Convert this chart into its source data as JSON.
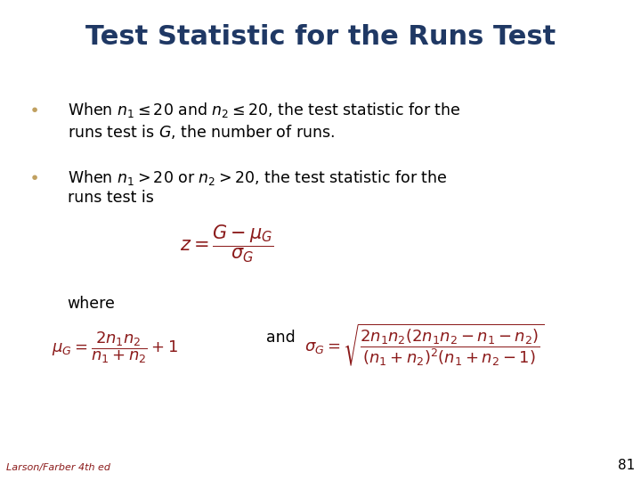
{
  "title": "Test Statistic for the Runs Test",
  "title_color": "#1F3864",
  "title_fontsize": 22,
  "bg_color": "#FFFFFF",
  "bullet_color": "#C0A060",
  "text_color": "#000000",
  "formula_color": "#8B1A1A",
  "footer_text": "Larson/Farber 4th ed",
  "footer_number": "81",
  "bullet1_line1": "When $n_1 \\leq 20$ and $n_2 \\leq 20$, the test statistic for the",
  "bullet1_line2": "runs test is $\\mathit{G}$, the number of runs.",
  "bullet2_line1": "When $n_1 > 20$ or $n_2 > 20$, the test statistic for the",
  "bullet2_line2": "runs test is",
  "formula_z": "$z = \\dfrac{G - \\mu_G}{\\sigma_G}$",
  "where_text": "where",
  "formula_mu": "$\\mu_G = \\dfrac{2n_1 n_2}{n_1 + n_2} + 1$",
  "and_text": "and",
  "formula_sigma": "$\\sigma_G = \\sqrt{\\dfrac{2n_1 n_2(2n_1 n_2 - n_1 - n_2)}{(n_1 + n_2)^2(n_1 + n_2 - 1)}}$"
}
